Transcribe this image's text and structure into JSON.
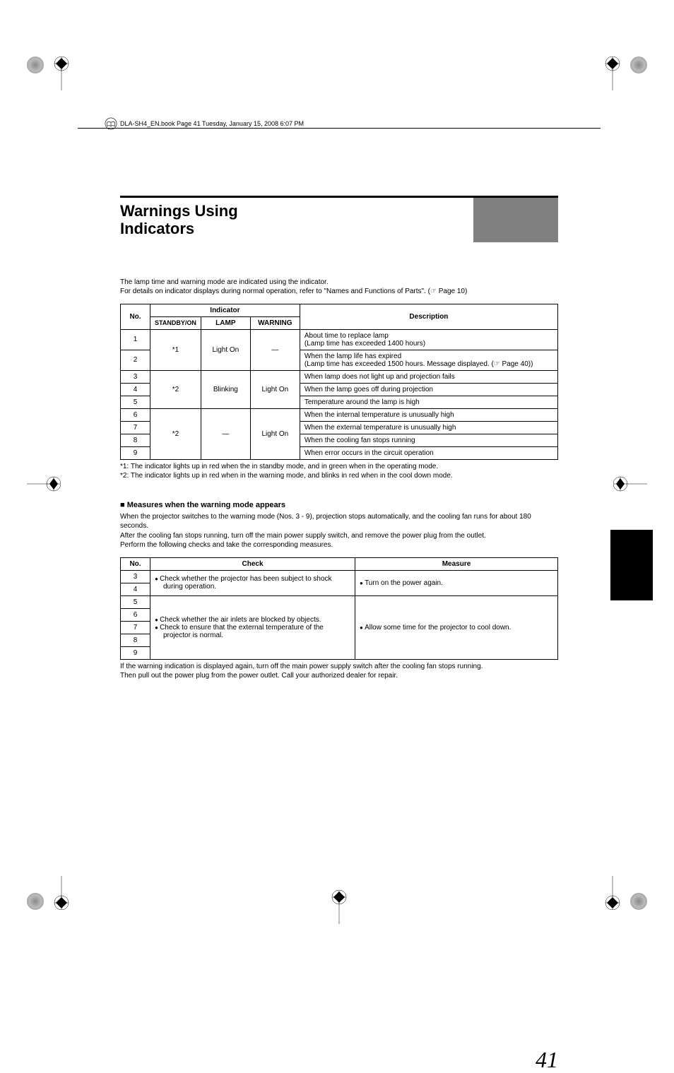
{
  "header": {
    "text": "DLA-SH4_EN.book  Page 41  Tuesday, January 15, 2008  6:07 PM"
  },
  "title": "Warnings Using Indicators",
  "intro": {
    "line1": "The lamp time and warning mode are indicated using the indicator.",
    "line2": "For details on indicator displays during normal operation, refer to \"Names and Functions of Parts\". (☞ Page 10)"
  },
  "table1": {
    "headers": {
      "no": "No.",
      "indicator": "Indicator",
      "standby": "STANDBY/ON",
      "lamp": "LAMP",
      "warning": "WARNING",
      "description": "Description"
    },
    "group1": {
      "standby": "*1",
      "lamp": "Light On",
      "warning": "—",
      "rows": [
        {
          "no": "1",
          "desc": "About time to replace lamp\n(Lamp time has exceeded 1400 hours)"
        },
        {
          "no": "2",
          "desc": "When the lamp life has expired\n(Lamp time has exceeded 1500 hours. Message displayed. (☞ Page 40))"
        }
      ]
    },
    "group2": {
      "standby": "*2",
      "lamp": "Blinking",
      "warning": "Light On",
      "rows": [
        {
          "no": "3",
          "desc": "When lamp does not light up and projection fails"
        },
        {
          "no": "4",
          "desc": "When the lamp goes off during projection"
        },
        {
          "no": "5",
          "desc": "Temperature around the lamp is high"
        }
      ]
    },
    "group3": {
      "standby": "*2",
      "lamp": "—",
      "warning": "Light On",
      "rows": [
        {
          "no": "6",
          "desc": "When the internal temperature is unusually high"
        },
        {
          "no": "7",
          "desc": "When the external temperature is unusually high"
        },
        {
          "no": "8",
          "desc": "When the cooling fan stops running"
        },
        {
          "no": "9",
          "desc": "When error occurs in the circuit operation"
        }
      ]
    }
  },
  "footnotes": {
    "f1": "*1: The indicator lights up in red when the in standby mode, and in green when in the operating mode.",
    "f2": "*2: The indicator lights up in red when in the warning mode, and blinks in red when in the cool down mode."
  },
  "section": {
    "heading": "Measures when the warning mode appears",
    "para1": "When the projector switches to the warning mode (Nos. 3 - 9), projection stops automatically, and the cooling fan runs for about 180 seconds.",
    "para2": "After the cooling fan stops running, turn off the main power supply switch, and remove the power plug from the outlet.",
    "para3": "Perform the following checks and take the corresponding measures."
  },
  "table2": {
    "headers": {
      "no": "No.",
      "check": "Check",
      "measure": "Measure"
    },
    "group1": {
      "nos": [
        "3",
        "4"
      ],
      "check": "Check whether the projector has been subject to shock during operation.",
      "measure": "Turn on the power again."
    },
    "group2": {
      "nos": [
        "5",
        "6",
        "7",
        "8",
        "9"
      ],
      "check1": "Check whether the air inlets are blocked by objects.",
      "check2": "Check to ensure that the external temperature of the projector is normal.",
      "measure": "Allow some time for the projector to cool down."
    }
  },
  "closing": {
    "line1": "If the warning indication is displayed again, turn off the main power supply switch after the cooling fan stops running.",
    "line2": "Then pull out the power plug from the power outlet. Call your authorized dealer for repair."
  },
  "pageNumber": "41"
}
